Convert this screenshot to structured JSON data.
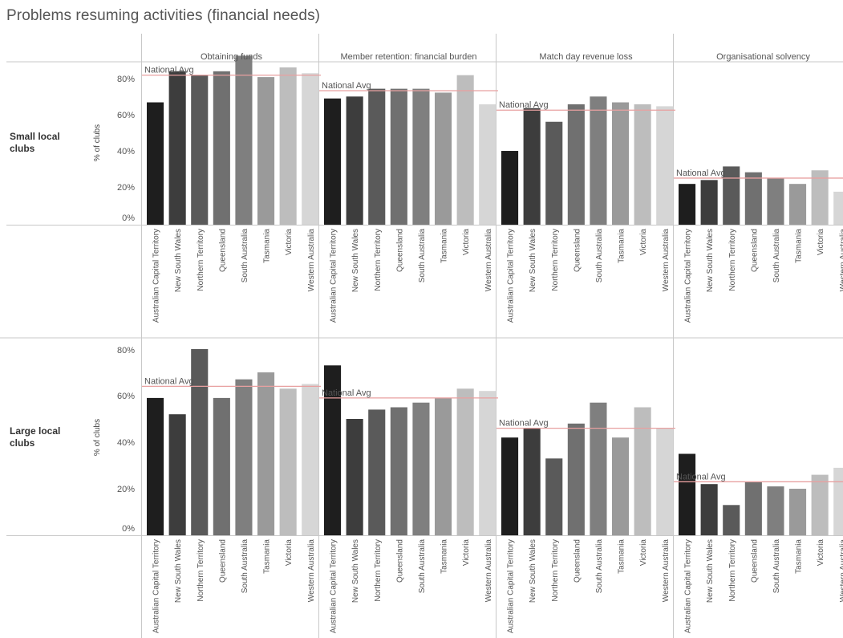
{
  "title": "Problems resuming activities (financial needs)",
  "colors": {
    "avg_line": "#e8a0a0",
    "bars": [
      "#1e1e1e",
      "#3d3d3d",
      "#5a5a5a",
      "#707070",
      "#7f7f7f",
      "#9a9a9a",
      "#bdbdbd",
      "#d6d6d6"
    ],
    "divider": "#c8c8c8",
    "gridline": "#f0f0f0"
  },
  "chart_data": {
    "type": "bar",
    "title": "Problems resuming activities (financial needs)",
    "categories": [
      "Australian Capital Territory",
      "New South Wales",
      "Northern Territory",
      "Queensland",
      "South Australia",
      "Tasmania",
      "Victoria",
      "Western Australia"
    ],
    "columns": [
      "Obtaining funds",
      "Member retention: financial burden",
      "Match day revenue loss",
      "Organisational solvency"
    ],
    "ylabel": "% of clubs",
    "yticks": [
      "0%",
      "20%",
      "40%",
      "60%",
      "80%"
    ],
    "ylim": [
      0,
      84
    ],
    "reference_line_label": "National Avg",
    "rows": [
      {
        "name": "Small local clubs",
        "panels": [
          {
            "column": "Obtaining funds",
            "values": [
              63,
              79,
              77,
              79,
              87,
              76,
              81,
              78
            ],
            "national_avg": 77
          },
          {
            "column": "Member retention: financial burden",
            "values": [
              65,
              66,
              70,
              70,
              70,
              68,
              77,
              62
            ],
            "national_avg": 69
          },
          {
            "column": "Match day revenue loss",
            "values": [
              38,
              60,
              53,
              62,
              66,
              63,
              62,
              61
            ],
            "national_avg": 59
          },
          {
            "column": "Organisational solvency",
            "values": [
              21,
              23,
              30,
              27,
              24,
              21,
              28,
              17
            ],
            "national_avg": 24
          }
        ]
      },
      {
        "name": "Large local clubs",
        "panels": [
          {
            "column": "Obtaining funds",
            "values": [
              59,
              52,
              80,
              59,
              67,
              70,
              63,
              65
            ],
            "national_avg": 64
          },
          {
            "column": "Member retention: financial burden",
            "values": [
              73,
              50,
              54,
              55,
              57,
              59,
              63,
              62
            ],
            "national_avg": 59
          },
          {
            "column": "Match day revenue loss",
            "values": [
              42,
              46,
              33,
              48,
              57,
              42,
              55,
              46
            ],
            "national_avg": 46
          },
          {
            "column": "Organisational solvency",
            "values": [
              35,
              22,
              13,
              23,
              21,
              20,
              26,
              29
            ],
            "national_avg": 23
          }
        ]
      }
    ]
  }
}
